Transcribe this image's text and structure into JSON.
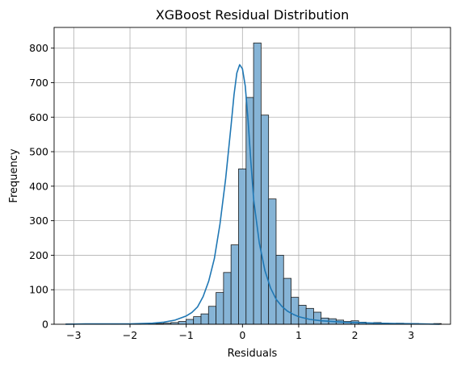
{
  "chart_data": {
    "type": "bar",
    "title": "XGBoost Residual Distribution",
    "xlabel": "Residuals",
    "ylabel": "Frequency",
    "xlim": [
      -3.35,
      3.7
    ],
    "ylim": [
      0,
      860
    ],
    "xticks": [
      -3,
      -2,
      -1,
      0,
      1,
      2,
      3
    ],
    "yticks": [
      0,
      100,
      200,
      300,
      400,
      500,
      600,
      700,
      800
    ],
    "xtick_labels": [
      "−3",
      "−2",
      "−1",
      "0",
      "1",
      "2",
      "3"
    ],
    "ytick_labels": [
      "0",
      "100",
      "200",
      "300",
      "400",
      "500",
      "600",
      "700",
      "800"
    ],
    "grid": true,
    "bins": {
      "start": -3.14,
      "width": 0.1335,
      "counts": [
        1,
        0,
        0,
        0,
        1,
        0,
        1,
        0,
        0,
        1,
        0,
        1,
        2,
        3,
        5,
        8,
        14,
        22,
        30,
        52,
        92,
        150,
        230,
        450,
        657,
        815,
        606,
        363,
        200,
        133,
        78,
        55,
        46,
        35,
        18,
        16,
        12,
        8,
        10,
        6,
        4,
        5,
        3,
        2,
        3,
        1,
        2,
        1,
        1,
        2
      ]
    },
    "kde": {
      "x": [
        -3.14,
        -2.8,
        -2.4,
        -2.0,
        -1.6,
        -1.4,
        -1.2,
        -1.0,
        -0.9,
        -0.8,
        -0.7,
        -0.6,
        -0.5,
        -0.4,
        -0.3,
        -0.2,
        -0.15,
        -0.1,
        -0.05,
        0.0,
        0.05,
        0.1,
        0.15,
        0.2,
        0.3,
        0.4,
        0.5,
        0.6,
        0.7,
        0.8,
        0.9,
        1.0,
        1.2,
        1.4,
        1.6,
        1.8,
        2.0,
        2.4,
        2.8,
        3.2,
        3.5
      ],
      "y": [
        0,
        1,
        1,
        1,
        3,
        6,
        12,
        24,
        34,
        50,
        80,
        125,
        190,
        290,
        420,
        580,
        665,
        728,
        752,
        740,
        690,
        590,
        470,
        360,
        235,
        155,
        105,
        72,
        52,
        38,
        29,
        22,
        14,
        10,
        8,
        6,
        5,
        3,
        2,
        1,
        0
      ]
    },
    "colors": {
      "bar_fill": "#86b4d6",
      "bar_edge": "#1a1a1a",
      "kde_line": "#1f77b4",
      "grid": "#b0b0b0"
    }
  }
}
